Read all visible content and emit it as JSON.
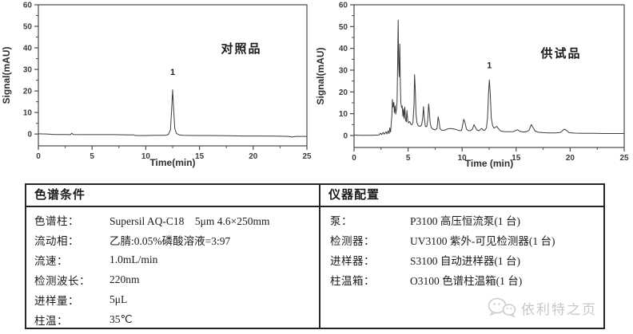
{
  "chart_data": [
    {
      "type": "line",
      "name": "reference-chromatogram",
      "annotation": "对照品",
      "xlabel": "Time(min)",
      "ylabel": "Signal(mAU)",
      "xlim": [
        0,
        25
      ],
      "ylim": [
        -5.5,
        60
      ],
      "x_major_ticks": [
        0,
        5,
        10,
        15,
        20,
        25
      ],
      "x_minor_ticks": [
        2.5,
        7.5,
        12.5,
        17.5,
        22.5
      ],
      "y_major_ticks": [
        0,
        10,
        20,
        30,
        40,
        50,
        60
      ],
      "y_minor_ticks": [
        5,
        15,
        25,
        35,
        45,
        55
      ],
      "grid": false,
      "legend": false,
      "line_color": "#3c3c3c",
      "peak_labels": [
        {
          "text": "1",
          "x": 12.5,
          "y": 27.5
        }
      ],
      "series": [
        {
          "name": "reference-signal",
          "points": [
            [
              0,
              0.1
            ],
            [
              0.8,
              0
            ],
            [
              1.5,
              -0.2
            ],
            [
              2.5,
              -0.2
            ],
            [
              3.0,
              -0.3
            ],
            [
              3.1,
              0.4
            ],
            [
              3.25,
              -0.2
            ],
            [
              4,
              -0.3
            ],
            [
              5,
              -0.3
            ],
            [
              6,
              -0.3
            ],
            [
              7,
              -0.3
            ],
            [
              8,
              -0.35
            ],
            [
              8.9,
              -0.4
            ],
            [
              9.0,
              -0.7
            ],
            [
              10,
              -0.7
            ],
            [
              11,
              -0.6
            ],
            [
              11.8,
              -0.6
            ],
            [
              12.1,
              -0.3
            ],
            [
              12.3,
              2
            ],
            [
              12.4,
              11
            ],
            [
              12.5,
              20.5
            ],
            [
              12.6,
              11
            ],
            [
              12.7,
              2.5
            ],
            [
              12.85,
              0.3
            ],
            [
              13.1,
              -0.4
            ],
            [
              13.5,
              -0.6
            ],
            [
              14.5,
              -0.7
            ],
            [
              16,
              -0.7
            ],
            [
              17.5,
              -0.8
            ],
            [
              19,
              -0.9
            ],
            [
              20.5,
              -0.9
            ],
            [
              22,
              -1
            ],
            [
              23.3,
              -1.1
            ],
            [
              23.6,
              -1.4
            ],
            [
              24,
              -1.1
            ],
            [
              25,
              -1.1
            ]
          ]
        }
      ]
    },
    {
      "type": "line",
      "name": "sample-chromatogram",
      "annotation": "供试品",
      "xlabel": "Time (min)",
      "ylabel": "Signal(mAU)",
      "xlim": [
        0,
        25
      ],
      "ylim": [
        -5.5,
        60
      ],
      "x_major_ticks": [
        0,
        5,
        10,
        15,
        20,
        25
      ],
      "x_minor_ticks": [
        2.5,
        7.5,
        12.5,
        17.5,
        22.5
      ],
      "y_major_ticks": [
        0,
        10,
        20,
        30,
        40,
        50,
        60
      ],
      "y_minor_ticks": [
        5,
        15,
        25,
        35,
        45,
        55
      ],
      "grid": false,
      "legend": false,
      "line_color": "#3c3c3c",
      "peak_labels": [
        {
          "text": "1",
          "x": 12.52,
          "y": 31
        }
      ],
      "series": [
        {
          "name": "sample-signal",
          "points": [
            [
              0,
              0.2
            ],
            [
              0.6,
              0.1
            ],
            [
              1.2,
              0.1
            ],
            [
              1.8,
              0.15
            ],
            [
              2.3,
              0.2
            ],
            [
              2.45,
              1.1
            ],
            [
              2.55,
              0.4
            ],
            [
              2.7,
              1.4
            ],
            [
              2.8,
              0.6
            ],
            [
              2.95,
              1.7
            ],
            [
              3.05,
              0.7
            ],
            [
              3.15,
              2.1
            ],
            [
              3.25,
              0.9
            ],
            [
              3.3,
              3.5
            ],
            [
              3.38,
              1.6
            ],
            [
              3.45,
              6
            ],
            [
              3.5,
              9
            ],
            [
              3.55,
              16.5
            ],
            [
              3.6,
              13
            ],
            [
              3.68,
              15.2
            ],
            [
              3.73,
              10.5
            ],
            [
              3.8,
              13.6
            ],
            [
              3.85,
              9.8
            ],
            [
              3.92,
              11.8
            ],
            [
              3.98,
              15
            ],
            [
              4.02,
              30
            ],
            [
              4.08,
              53
            ],
            [
              4.13,
              33
            ],
            [
              4.18,
              27
            ],
            [
              4.23,
              42
            ],
            [
              4.28,
              24
            ],
            [
              4.33,
              15
            ],
            [
              4.4,
              12.8
            ],
            [
              4.45,
              13.6
            ],
            [
              4.52,
              8.8
            ],
            [
              4.58,
              12.2
            ],
            [
              4.63,
              7.8
            ],
            [
              4.7,
              13.1
            ],
            [
              4.76,
              7
            ],
            [
              4.83,
              6.3
            ],
            [
              4.9,
              11.4
            ],
            [
              4.97,
              6.6
            ],
            [
              5.05,
              5.8
            ],
            [
              5.15,
              6.4
            ],
            [
              5.25,
              5.2
            ],
            [
              5.35,
              4.9
            ],
            [
              5.45,
              6
            ],
            [
              5.55,
              14
            ],
            [
              5.6,
              28
            ],
            [
              5.66,
              22
            ],
            [
              5.73,
              10
            ],
            [
              5.82,
              5.8
            ],
            [
              5.95,
              4.4
            ],
            [
              6.1,
              4.2
            ],
            [
              6.25,
              4.8
            ],
            [
              6.35,
              8
            ],
            [
              6.42,
              13.2
            ],
            [
              6.5,
              8
            ],
            [
              6.6,
              4.2
            ],
            [
              6.72,
              4
            ],
            [
              6.82,
              7
            ],
            [
              6.9,
              14.5
            ],
            [
              6.97,
              11
            ],
            [
              7.05,
              5.5
            ],
            [
              7.15,
              3.6
            ],
            [
              7.3,
              2.9
            ],
            [
              7.5,
              2.6
            ],
            [
              7.68,
              3.2
            ],
            [
              7.78,
              8.6
            ],
            [
              7.86,
              6.5
            ],
            [
              7.95,
              3.2
            ],
            [
              8.1,
              2.4
            ],
            [
              8.35,
              2.4
            ],
            [
              8.6,
              2.9
            ],
            [
              8.85,
              3.2
            ],
            [
              9.1,
              3.1
            ],
            [
              9.4,
              2.8
            ],
            [
              9.7,
              2.3
            ],
            [
              9.95,
              2.3
            ],
            [
              10.15,
              7.4
            ],
            [
              10.25,
              6.2
            ],
            [
              10.4,
              3
            ],
            [
              10.55,
              2.3
            ],
            [
              10.75,
              2.2
            ],
            [
              10.95,
              2.8
            ],
            [
              11.1,
              5
            ],
            [
              11.2,
              4
            ],
            [
              11.35,
              2.6
            ],
            [
              11.55,
              2.2
            ],
            [
              11.72,
              2.9
            ],
            [
              11.82,
              3.2
            ],
            [
              11.95,
              2.4
            ],
            [
              12.1,
              2.4
            ],
            [
              12.25,
              3.5
            ],
            [
              12.35,
              8
            ],
            [
              12.45,
              20
            ],
            [
              12.52,
              25.5
            ],
            [
              12.6,
              19
            ],
            [
              12.7,
              8
            ],
            [
              12.82,
              4.6
            ],
            [
              12.95,
              3.4
            ],
            [
              13.1,
              3.8
            ],
            [
              13.2,
              4.2
            ],
            [
              13.35,
              3.2
            ],
            [
              13.55,
              2.1
            ],
            [
              13.85,
              1.8
            ],
            [
              14.3,
              1.7
            ],
            [
              14.75,
              1.8
            ],
            [
              15.05,
              2.5
            ],
            [
              15.15,
              2.6
            ],
            [
              15.35,
              1.9
            ],
            [
              15.65,
              1.6
            ],
            [
              15.95,
              1.7
            ],
            [
              16.2,
              2.4
            ],
            [
              16.4,
              5
            ],
            [
              16.55,
              3.8
            ],
            [
              16.75,
              2
            ],
            [
              17.05,
              1.5
            ],
            [
              17.5,
              1.3
            ],
            [
              18,
              1.2
            ],
            [
              18.6,
              1.2
            ],
            [
              19.1,
              1.4
            ],
            [
              19.45,
              2.9
            ],
            [
              19.65,
              2.4
            ],
            [
              19.9,
              1.3
            ],
            [
              20.4,
              1.1
            ],
            [
              21.2,
              1
            ],
            [
              22.2,
              1
            ],
            [
              23.2,
              0.9
            ],
            [
              24.1,
              0.9
            ],
            [
              25,
              0.9
            ]
          ]
        }
      ]
    }
  ],
  "table": {
    "left": {
      "title": "色谱条件",
      "rows": [
        {
          "label": "色谱柱：",
          "value": "Supersil AQ-C18　5μm 4.6×250mm"
        },
        {
          "label": "流动相：",
          "value": "乙腈:0.05%磷酸溶液=3:97"
        },
        {
          "label": "流速：",
          "value": "1.0mL/min"
        },
        {
          "label": "检测波长：",
          "value": "220nm"
        },
        {
          "label": "进样量：",
          "value": "5μL"
        },
        {
          "label": "柱温：",
          "value": "35℃"
        }
      ]
    },
    "right": {
      "title": "仪器配置",
      "rows": [
        {
          "label": "泵：",
          "value": "P3100 高压恒流泵(1 台)"
        },
        {
          "label": "检测器：",
          "value": "UV3100 紫外-可见检测器(1 台)"
        },
        {
          "label": "进样器：",
          "value": "S3100 自动进样器(1 台)"
        },
        {
          "label": "柱温箱：",
          "value": "O3100 色谱柱温箱(1 台)"
        }
      ]
    }
  },
  "watermark": {
    "text": "依利特之页",
    "icon": "wechat-icon",
    "color": "#c7c7c7"
  }
}
